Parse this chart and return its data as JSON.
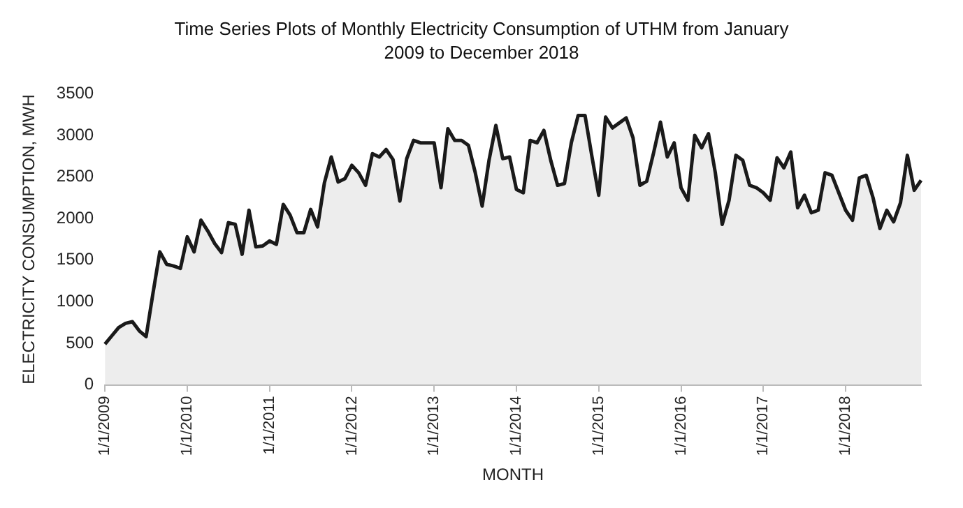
{
  "chart_data": {
    "type": "area",
    "title": "Time Series Plots of Monthly Electricity Consumption of UTHM from January 2009 to December 2018",
    "xlabel": "MONTH",
    "ylabel": "ELECTRICITY CONSUMPTION, MWH",
    "categories": [
      "1/1/2009",
      null,
      null,
      null,
      null,
      null,
      null,
      null,
      null,
      null,
      null,
      null,
      "1/1/2010",
      null,
      null,
      null,
      null,
      null,
      null,
      null,
      null,
      null,
      null,
      null,
      "1/1/2011",
      null,
      null,
      null,
      null,
      null,
      null,
      null,
      null,
      null,
      null,
      null,
      "1/1/2012",
      null,
      null,
      null,
      null,
      null,
      null,
      null,
      null,
      null,
      null,
      null,
      "1/1/2013",
      null,
      null,
      null,
      null,
      null,
      null,
      null,
      null,
      null,
      null,
      null,
      "1/1/2014",
      null,
      null,
      null,
      null,
      null,
      null,
      null,
      null,
      null,
      null,
      null,
      "1/1/2015",
      null,
      null,
      null,
      null,
      null,
      null,
      null,
      null,
      null,
      null,
      null,
      "1/1/2016",
      null,
      null,
      null,
      null,
      null,
      null,
      null,
      null,
      null,
      null,
      null,
      "1/1/2017",
      null,
      null,
      null,
      null,
      null,
      null,
      null,
      null,
      null,
      null,
      null,
      "1/1/2018",
      null,
      null,
      null,
      null,
      null,
      null,
      null,
      null,
      null,
      null,
      null
    ],
    "series": [
      {
        "color": "#1a1a1a",
        "values": [
          490,
          590,
          690,
          740,
          760,
          650,
          580,
          1100,
          1600,
          1450,
          1430,
          1400,
          1780,
          1600,
          1980,
          1850,
          1700,
          1590,
          1950,
          1930,
          1570,
          2100,
          1660,
          1670,
          1730,
          1690,
          2170,
          2040,
          1830,
          1830,
          2110,
          1900,
          2430,
          2740,
          2440,
          2480,
          2640,
          2550,
          2400,
          2780,
          2740,
          2830,
          2710,
          2210,
          2720,
          2940,
          2910,
          2910,
          2910,
          2370,
          3080,
          2940,
          2940,
          2880,
          2550,
          2150,
          2700,
          3120,
          2720,
          2740,
          2350,
          2310,
          2940,
          2910,
          3060,
          2700,
          2400,
          2420,
          2910,
          3240,
          3240,
          2750,
          2280,
          3220,
          3090,
          3150,
          3210,
          2970,
          2400,
          2450,
          2790,
          3160,
          2740,
          2910,
          2370,
          2220,
          3000,
          2850,
          3020,
          2550,
          1930,
          2220,
          2760,
          2700,
          2400,
          2370,
          2310,
          2220,
          2730,
          2610,
          2800,
          2130,
          2280,
          2070,
          2100,
          2550,
          2520,
          2310,
          2100,
          1980,
          2490,
          2520,
          2250,
          1880,
          2100,
          1960,
          2190,
          2760,
          2340,
          2460
        ]
      }
    ],
    "ylim": [
      0,
      3500
    ],
    "yticks": [
      0,
      500,
      1000,
      1500,
      2000,
      2500,
      3000,
      3500
    ],
    "grid": false,
    "legend": false
  }
}
